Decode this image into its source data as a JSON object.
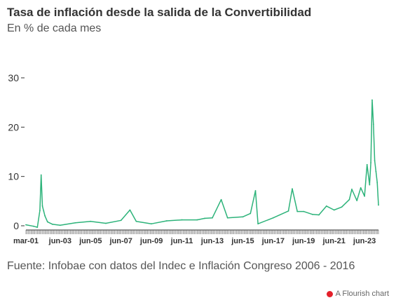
{
  "chart_data": {
    "type": "line",
    "title": "Tasa de inflación desde la salida de la Convertibilidad",
    "subtitle": "En % de cada mes",
    "xlabel": "",
    "ylabel": "",
    "ylim": [
      0,
      30
    ],
    "yticks": [
      "0",
      "10",
      "20",
      "30"
    ],
    "xticks": [
      "mar-01",
      "jun-03",
      "jun-05",
      "jun-07",
      "jun-09",
      "jun-11",
      "jun-13",
      "jun-15",
      "jun-17",
      "jun-19",
      "jun-21",
      "jun-23"
    ],
    "grid": false,
    "series": [
      {
        "color": "#2db37a",
        "x": [
          "mar-01",
          "sep-01",
          "dic-01",
          "feb-02",
          "mar-02",
          "abr-02",
          "may-02",
          "jun-02",
          "ago-02",
          "dic-02",
          "jun-03",
          "jun-04",
          "jun-05",
          "jun-06",
          "jun-07",
          "ene-08",
          "jun-08",
          "jun-09",
          "jun-10",
          "jun-11",
          "jun-12",
          "dic-12",
          "jun-13",
          "ene-14",
          "jun-14",
          "jun-15",
          "dic-15",
          "abr-16",
          "jun-16",
          "jun-17",
          "jun-18",
          "sep-18",
          "ene-19",
          "jun-19",
          "ene-20",
          "jun-20",
          "dic-20",
          "jun-21",
          "dic-21",
          "jun-22",
          "ago-22",
          "dic-22",
          "mar-23",
          "jun-23",
          "ago-23",
          "oct-23",
          "nov-23",
          "dic-23",
          "ene-24",
          "feb-24",
          "mar-24",
          "abr-24",
          "may-24"
        ],
        "values": [
          0.2,
          -0.1,
          -0.3,
          3.1,
          10.3,
          4.0,
          3.0,
          2.0,
          0.8,
          0.3,
          0.1,
          0.6,
          0.9,
          0.5,
          1.1,
          3.2,
          0.9,
          0.4,
          1.0,
          1.2,
          1.2,
          1.5,
          1.6,
          5.3,
          1.6,
          1.8,
          2.5,
          7.1,
          0.4,
          1.6,
          3.0,
          7.5,
          2.9,
          2.9,
          2.3,
          2.2,
          4.0,
          3.2,
          3.8,
          5.3,
          7.4,
          5.1,
          7.7,
          6.0,
          12.4,
          8.3,
          12.8,
          25.5,
          20.6,
          13.2,
          11.0,
          8.8,
          4.2
        ]
      }
    ]
  },
  "source": "Fuente: Infobae con datos del Indec e Inflación Congreso 2006 - 2016",
  "credit": "A Flourish chart"
}
